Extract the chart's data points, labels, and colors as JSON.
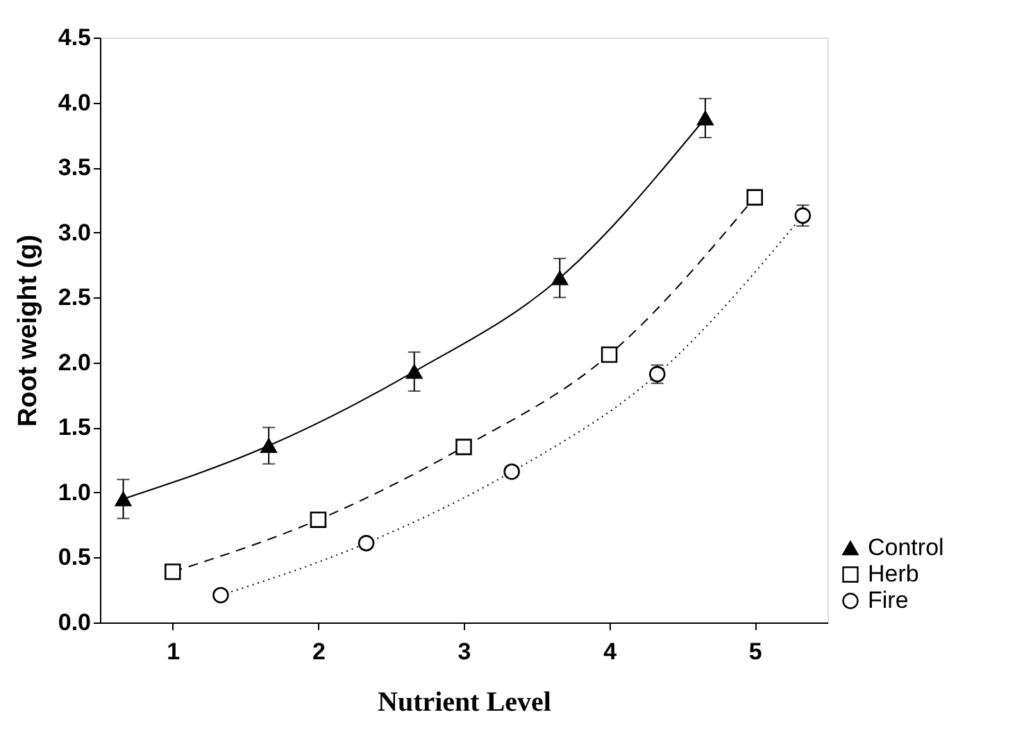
{
  "chart_data": {
    "type": "line",
    "xlabel": "Nutrient Level",
    "ylabel": "Root weight (g)",
    "xlim": [
      0.5,
      5.5
    ],
    "xticks": [
      1,
      2,
      3,
      4,
      5
    ],
    "ylim": [
      0,
      4.5
    ],
    "yticks": [
      {
        "value": 0,
        "label": "0.0"
      },
      {
        "value": 0.5,
        "label": "0.5"
      },
      {
        "value": 1,
        "label": "1.0"
      },
      {
        "value": 1.5,
        "label": "1.5"
      },
      {
        "value": 2,
        "label": "2.0"
      },
      {
        "value": 2.5,
        "label": "2.5"
      },
      {
        "value": 3,
        "label": "3.0"
      },
      {
        "value": 3.5,
        "label": "3.5"
      },
      {
        "value": 4,
        "label": "4.0"
      },
      {
        "value": 4.5,
        "label": "4.5"
      }
    ],
    "grid": false,
    "legend": "bottom right",
    "series": [
      {
        "name": "Control",
        "color": "#000000",
        "marker": "triangle",
        "line_style": "solid",
        "x": [
          0.66,
          1.66,
          2.66,
          3.66,
          4.66
        ],
        "values": [
          0.95,
          1.36,
          1.93,
          2.65,
          3.88
        ],
        "errors": [
          0.15,
          0.14,
          0.15,
          0.15,
          0.15
        ]
      },
      {
        "name": "Herb",
        "color": "#000000",
        "marker": "square",
        "line_style": "dashed",
        "x": [
          1,
          2,
          3,
          4,
          5
        ],
        "values": [
          0.39,
          0.79,
          1.35,
          2.06,
          3.27
        ],
        "errors": [
          0.03,
          0.04,
          0.04,
          0.05,
          0.05
        ]
      },
      {
        "name": "Fire",
        "color": "#000000",
        "marker": "circle",
        "line_style": "dotted",
        "x": [
          1.33,
          2.33,
          3.33,
          4.33,
          5.33
        ],
        "values": [
          0.21,
          0.61,
          1.16,
          1.91,
          3.13
        ],
        "errors": [
          0.03,
          0.03,
          0.04,
          0.07,
          0.08
        ]
      }
    ]
  }
}
